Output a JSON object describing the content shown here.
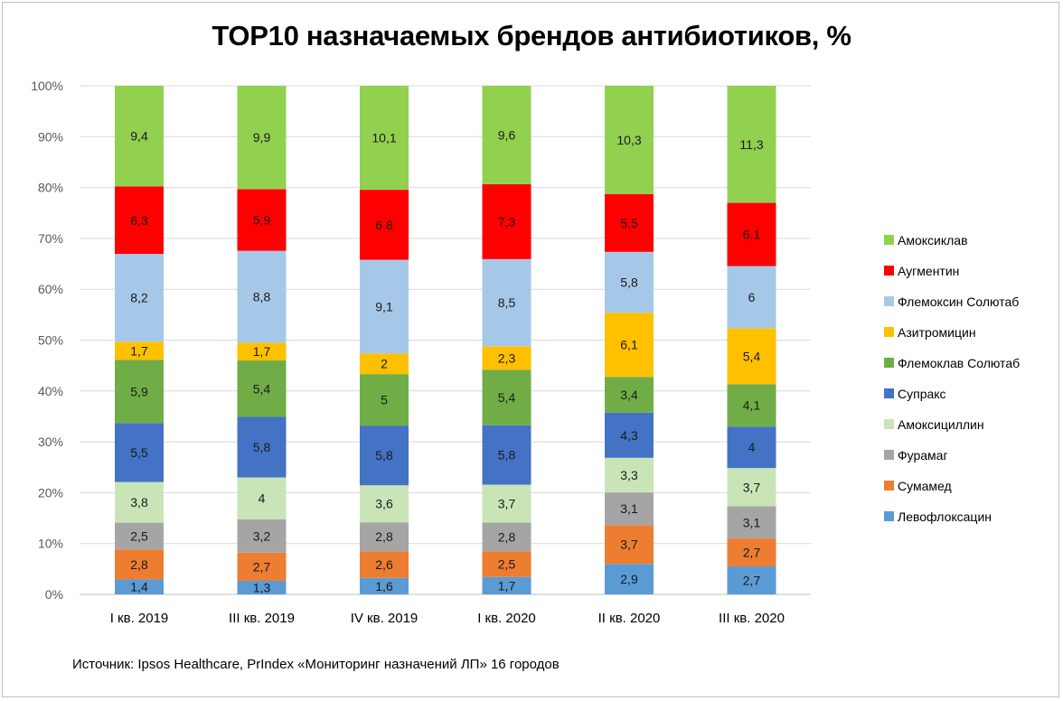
{
  "chart_data": {
    "type": "bar",
    "stacked": true,
    "title": "TOP10 назначаемых брендов  антибиотиков, %",
    "categories": [
      "I кв. 2019",
      "III кв. 2019",
      "IV кв. 2019",
      "I кв. 2020",
      "II кв. 2020",
      "III кв. 2020"
    ],
    "y_ticks": [
      "0%",
      "10%",
      "20%",
      "30%",
      "40%",
      "50%",
      "60%",
      "70%",
      "80%",
      "90%",
      "100%"
    ],
    "ylim": [
      0,
      100
    ],
    "grid": true,
    "legend_position": "right",
    "series": [
      {
        "name": "Левофлоксацин",
        "color": "#5b9bd5",
        "values": [
          1.4,
          1.3,
          1.6,
          1.7,
          2.9,
          2.7
        ],
        "labels": [
          "1,4",
          "1,3",
          "1,6",
          "1,7",
          "2,9",
          "2,7"
        ]
      },
      {
        "name": "Сумамед",
        "color": "#ed7d31",
        "values": [
          2.8,
          2.7,
          2.6,
          2.5,
          3.7,
          2.7
        ],
        "labels": [
          "2,8",
          "2,7",
          "2,6",
          "2,5",
          "3,7",
          "2,7"
        ]
      },
      {
        "name": "Фурамаг",
        "color": "#a5a5a5",
        "values": [
          2.5,
          3.2,
          2.8,
          2.8,
          3.1,
          3.1
        ],
        "labels": [
          "2,5",
          "3,2",
          "2,8",
          "2,8",
          "3,1",
          "3,1"
        ]
      },
      {
        "name": "Амоксициллин",
        "color": "#c9e5b8",
        "values": [
          3.8,
          4,
          3.6,
          3.7,
          3.3,
          3.7
        ],
        "labels": [
          "3,8",
          "4",
          "3,6",
          "3,7",
          "3,3",
          "3,7"
        ]
      },
      {
        "name": "Супракс",
        "color": "#4472c4",
        "values": [
          5.5,
          5.8,
          5.8,
          5.8,
          4.3,
          4
        ],
        "labels": [
          "5,5",
          "5,8",
          "5,8",
          "5,8",
          "4,3",
          "4"
        ]
      },
      {
        "name": "Флемоклав Солютаб",
        "color": "#70ad47",
        "values": [
          5.9,
          5.4,
          5,
          5.4,
          3.4,
          4.1
        ],
        "labels": [
          "5,9",
          "5,4",
          "5",
          "5,4",
          "3,4",
          "4,1"
        ]
      },
      {
        "name": "Азитромицин",
        "color": "#ffc000",
        "values": [
          1.7,
          1.7,
          2,
          2.3,
          6.1,
          5.4
        ],
        "labels": [
          "1,7",
          "1,7",
          "2",
          "2,3",
          "6,1",
          "5,4"
        ]
      },
      {
        "name": "Флемоксин Солютаб",
        "color": "#a6c8e8",
        "values": [
          8.2,
          8.8,
          9.1,
          8.5,
          5.8,
          6
        ],
        "labels": [
          "8,2",
          "8,8",
          "9,1",
          "8,5",
          "5,8",
          "6"
        ]
      },
      {
        "name": "Аугментин",
        "color": "#ff0000",
        "values": [
          6.3,
          5.9,
          6.8,
          7.3,
          5.5,
          6.1
        ],
        "labels": [
          "6,3",
          "5,9",
          "6,8",
          "7,3",
          "5,5",
          "6,1"
        ]
      },
      {
        "name": "Амоксиклав",
        "color": "#92d050",
        "values": [
          9.4,
          9.9,
          10.1,
          9.6,
          10.3,
          11.3
        ],
        "labels": [
          "9,4",
          "9,9",
          "10,1",
          "9,6",
          "10,3",
          "11,3"
        ]
      }
    ]
  },
  "source_text": "Источник: Ipsos Healthcare, PrIndex  «Мониторинг назначений ЛП» 16 городов"
}
